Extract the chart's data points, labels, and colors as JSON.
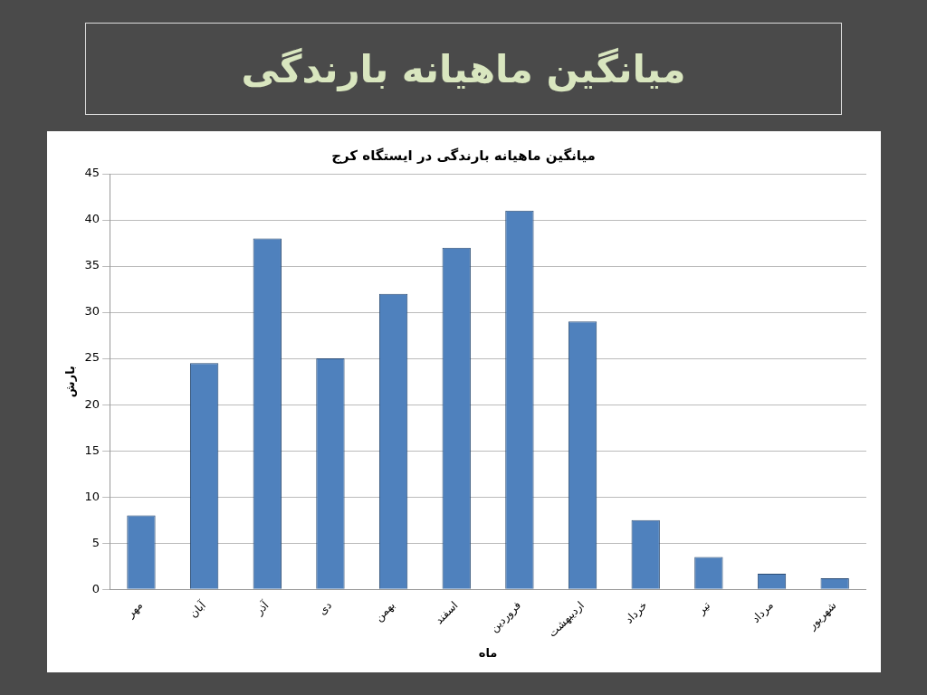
{
  "chart_data": {
    "type": "bar",
    "title": "میانگین ماهیانه بارندگی",
    "subtitle": "میانگین ماهیانه بارندگی در ایستگاه کرج",
    "xlabel": "ماه",
    "ylabel": "بارش",
    "categories": [
      "مهر",
      "آبان",
      "آذر",
      "دی",
      "بهمن",
      "اسفند",
      "فروردین",
      "اردیبهشت",
      "خرداد",
      "تیر",
      "مرداد",
      "شهریور"
    ],
    "values": [
      8,
      24.5,
      38,
      25,
      32,
      37,
      41,
      29,
      7.5,
      3.5,
      1.7,
      1.2
    ],
    "color": "#4f81bd",
    "ylim": [
      0,
      45
    ],
    "yticks": [
      0,
      5,
      10,
      15,
      20,
      25,
      30,
      35,
      40,
      45
    ],
    "grid": "y",
    "legend": false
  }
}
